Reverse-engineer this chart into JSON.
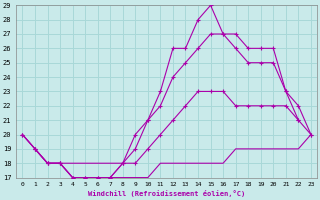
{
  "xlabel": "Windchill (Refroidissement éolien,°C)",
  "xlim": [
    -0.5,
    23.5
  ],
  "ylim": [
    17,
    29
  ],
  "xticks": [
    0,
    1,
    2,
    3,
    4,
    5,
    6,
    7,
    8,
    9,
    10,
    11,
    12,
    13,
    14,
    15,
    16,
    17,
    18,
    19,
    20,
    21,
    22,
    23
  ],
  "yticks": [
    17,
    18,
    19,
    20,
    21,
    22,
    23,
    24,
    25,
    26,
    27,
    28,
    29
  ],
  "background_color": "#c9eaea",
  "grid_color": "#a8d8d8",
  "line_color": "#aa00aa",
  "lines": [
    {
      "x": [
        0,
        1,
        2,
        3,
        4,
        5,
        6,
        7,
        8,
        9,
        10,
        11,
        12,
        13,
        14,
        15,
        16,
        17,
        18,
        19,
        20,
        21,
        22,
        23
      ],
      "y": [
        20,
        19,
        18,
        18,
        17,
        17,
        17,
        17,
        17,
        17,
        17,
        18,
        18,
        18,
        18,
        18,
        18,
        19,
        19,
        19,
        19,
        19,
        19,
        20
      ],
      "marker": null
    },
    {
      "x": [
        0,
        1,
        2,
        3,
        4,
        5,
        6,
        7,
        8,
        9,
        10,
        11,
        12,
        13,
        14,
        15,
        16,
        17,
        18,
        19,
        20,
        21,
        22,
        23
      ],
      "y": [
        20,
        19,
        18,
        18,
        17,
        17,
        17,
        17,
        18,
        18,
        19,
        20,
        21,
        22,
        23,
        23,
        23,
        22,
        22,
        22,
        22,
        22,
        21,
        20
      ],
      "marker": "+"
    },
    {
      "x": [
        0,
        1,
        2,
        3,
        4,
        5,
        6,
        7,
        8,
        9,
        10,
        11,
        12,
        13,
        14,
        15,
        16,
        17,
        18,
        19,
        20,
        21,
        22,
        23
      ],
      "y": [
        20,
        19,
        18,
        18,
        17,
        17,
        17,
        17,
        18,
        19,
        21,
        22,
        24,
        25,
        26,
        27,
        27,
        26,
        25,
        25,
        25,
        23,
        22,
        20
      ],
      "marker": "+"
    },
    {
      "x": [
        1,
        2,
        3,
        8,
        9,
        10,
        11,
        12,
        13,
        14,
        15,
        16,
        17,
        18,
        19,
        20,
        21,
        22
      ],
      "y": [
        19,
        18,
        18,
        18,
        20,
        21,
        23,
        26,
        26,
        28,
        29,
        27,
        27,
        26,
        26,
        26,
        23,
        21
      ],
      "marker": "+"
    }
  ]
}
